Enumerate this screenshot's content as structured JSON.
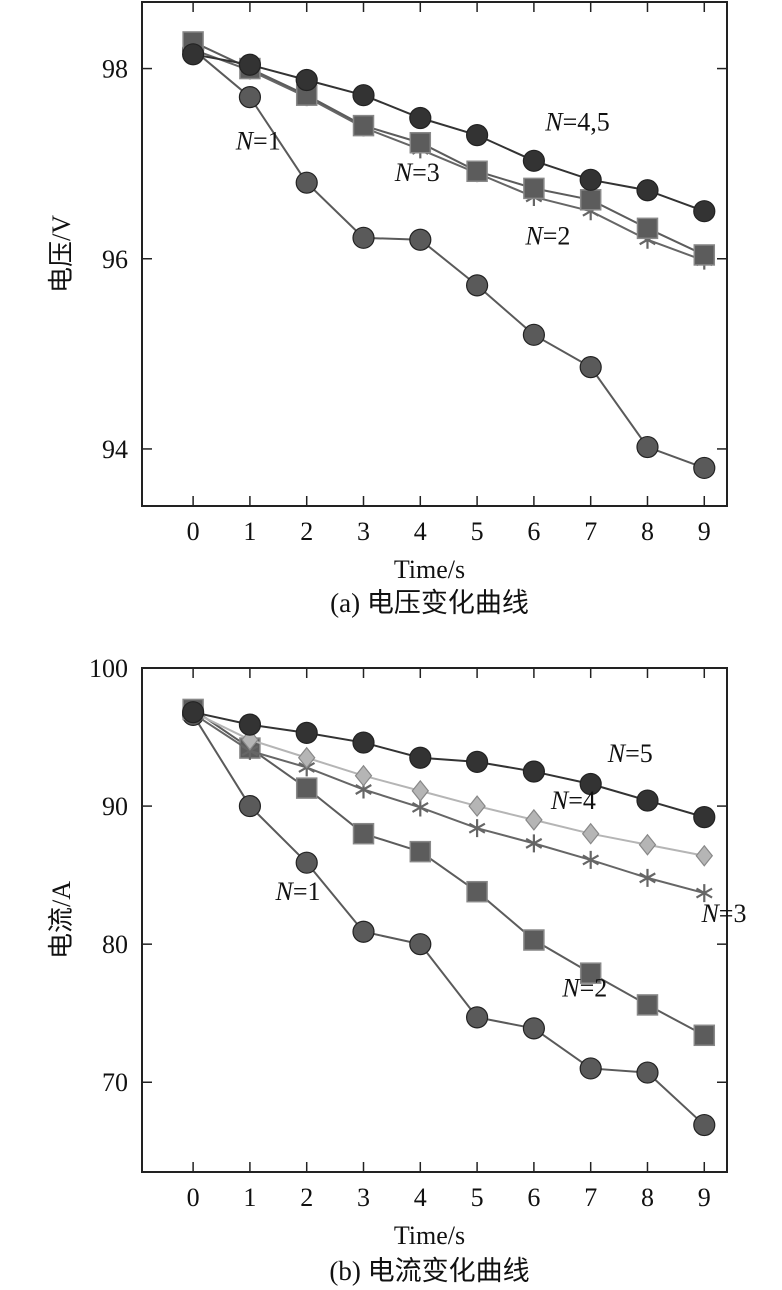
{
  "chart_data": [
    {
      "type": "line",
      "caption": "(a) 电压变化曲线",
      "xlabel": "Time/s",
      "ylabel": "电压/V",
      "x": [
        0,
        1,
        2,
        3,
        4,
        5,
        6,
        7,
        8,
        9
      ],
      "xlim": [
        -0.9,
        9.4
      ],
      "ylim": [
        93.4,
        98.7
      ],
      "yticks": [
        94,
        96,
        98
      ],
      "series": [
        {
          "name": "N=1",
          "marker": "circle",
          "color": "#5a5a5a",
          "values": [
            98.2,
            97.7,
            96.8,
            96.22,
            96.2,
            95.72,
            95.2,
            94.86,
            94.02,
            93.8
          ]
        },
        {
          "name": "N=2",
          "marker": "star",
          "color": "#666666",
          "values": [
            98.2,
            97.98,
            97.7,
            97.38,
            97.15,
            96.9,
            96.65,
            96.5,
            96.2,
            95.98
          ]
        },
        {
          "name": "N=3",
          "marker": "square",
          "color": "#5c5c5c",
          "values": [
            98.28,
            98.0,
            97.72,
            97.4,
            97.22,
            96.92,
            96.74,
            96.62,
            96.32,
            96.04
          ]
        },
        {
          "name": "N=4,5",
          "marker": "circle",
          "color": "#333333",
          "values": [
            98.15,
            98.04,
            97.88,
            97.72,
            97.48,
            97.3,
            97.03,
            96.83,
            96.72,
            96.5
          ]
        }
      ],
      "annotations": [
        {
          "label_key": "N",
          "value": "=1",
          "x": 0.75,
          "y": 97.15
        },
        {
          "label_key": "N",
          "value": "=3",
          "x": 3.55,
          "y": 96.82
        },
        {
          "label_key": "N",
          "value": "=4,5",
          "x": 6.2,
          "y": 97.35
        },
        {
          "label_key": "N",
          "value": "=2",
          "x": 5.85,
          "y": 96.15
        }
      ]
    },
    {
      "type": "line",
      "caption": "(b) 电流变化曲线",
      "xlabel": "Time/s",
      "ylabel": "电流/A",
      "x": [
        0,
        1,
        2,
        3,
        4,
        5,
        6,
        7,
        8,
        9
      ],
      "xlim": [
        -0.9,
        9.4
      ],
      "ylim": [
        63.5,
        100
      ],
      "yticks": [
        70,
        80,
        90,
        100
      ],
      "series": [
        {
          "name": "N=1",
          "marker": "circle",
          "color": "#5a5a5a",
          "values": [
            96.6,
            90.0,
            85.9,
            80.9,
            80.0,
            74.7,
            73.9,
            71.0,
            70.7,
            66.9
          ]
        },
        {
          "name": "N=2",
          "marker": "square",
          "color": "#5c5c5c",
          "values": [
            97.0,
            94.2,
            91.3,
            88.0,
            86.7,
            83.8,
            80.3,
            77.9,
            75.6,
            73.4
          ]
        },
        {
          "name": "N=3",
          "marker": "star",
          "color": "#666666",
          "values": [
            96.7,
            94.0,
            92.8,
            91.2,
            89.9,
            88.4,
            87.3,
            86.1,
            84.8,
            83.7
          ]
        },
        {
          "name": "N=4",
          "marker": "diamond",
          "color": "#b5b5b5",
          "values": [
            96.8,
            94.8,
            93.5,
            92.2,
            91.1,
            90.0,
            89.0,
            88.0,
            87.2,
            86.4
          ]
        },
        {
          "name": "N=5",
          "marker": "circle",
          "color": "#333333",
          "values": [
            96.8,
            95.9,
            95.3,
            94.6,
            93.5,
            93.2,
            92.5,
            91.6,
            90.4,
            89.2
          ]
        }
      ],
      "annotations": [
        {
          "label_key": "N",
          "value": "=5",
          "x": 7.3,
          "y": 93.2
        },
        {
          "label_key": "N",
          "value": "=4",
          "x": 6.3,
          "y": 89.8
        },
        {
          "label_key": "N",
          "value": "=1",
          "x": 1.45,
          "y": 83.2
        },
        {
          "label_key": "N",
          "value": "=3",
          "x": 8.95,
          "y": 81.6
        },
        {
          "label_key": "N",
          "value": "=2",
          "x": 6.5,
          "y": 76.2
        }
      ]
    }
  ],
  "label_letter": "N"
}
